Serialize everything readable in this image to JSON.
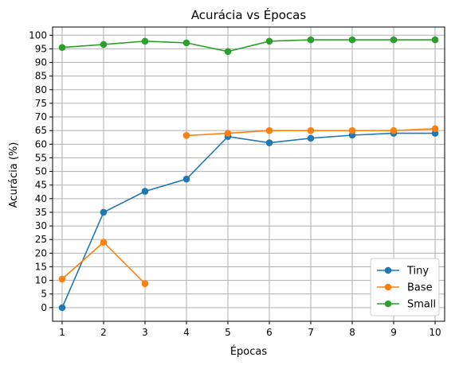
{
  "chart_data": {
    "type": "line",
    "title": "Acurácia vs Épocas",
    "xlabel": "Épocas",
    "ylabel": "Acurácia (%)",
    "x": [
      1,
      2,
      3,
      4,
      5,
      6,
      7,
      8,
      9,
      10
    ],
    "xlim": [
      0.77,
      10.23
    ],
    "ylim": [
      -5,
      103
    ],
    "yticks": [
      0,
      5,
      10,
      15,
      20,
      25,
      30,
      35,
      40,
      45,
      50,
      55,
      60,
      65,
      70,
      75,
      80,
      85,
      90,
      95,
      100
    ],
    "grid": true,
    "legend_position": "lower-right",
    "marker": "circle",
    "series": [
      {
        "name": "Tiny",
        "color": "#1f77b4",
        "values": [
          0,
          35,
          42.7,
          47.2,
          62.8,
          60.5,
          62.2,
          63.3,
          64,
          64
        ]
      },
      {
        "name": "Base",
        "color": "#ff7f0e",
        "values": [
          10.5,
          24,
          8.8,
          null,
          null,
          null,
          null,
          null,
          null,
          null
        ]
      },
      {
        "name": "Base",
        "color": "#ff7f0e",
        "values": [
          null,
          null,
          null,
          63.2,
          64,
          65,
          65,
          65,
          65,
          65.7
        ]
      },
      {
        "name": "Small",
        "color": "#2ca02c",
        "values": [
          95.5,
          96.6,
          97.8,
          97.2,
          94,
          97.8,
          98.3,
          98.3,
          98.3,
          98.3
        ]
      }
    ],
    "legend": [
      "Tiny",
      "Base",
      "Small"
    ],
    "legend_colors": [
      "#1f77b4",
      "#ff7f0e",
      "#2ca02c"
    ]
  }
}
